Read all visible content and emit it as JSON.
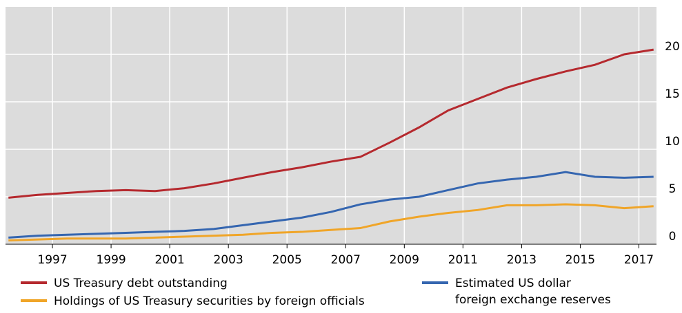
{
  "chart_data": {
    "type": "line",
    "x": [
      1995.5,
      1996.5,
      1997.5,
      1998.5,
      1999.5,
      2000.5,
      2001.5,
      2002.5,
      2003.5,
      2004.5,
      2005.5,
      2006.5,
      2007.5,
      2008.5,
      2009.5,
      2010.5,
      2011.5,
      2012.5,
      2013.5,
      2014.5,
      2015.5,
      2016.5,
      2017.5
    ],
    "series": [
      {
        "name": "US Treasury debt outstanding",
        "color": "#b5292e",
        "values": [
          4.9,
          5.2,
          5.4,
          5.6,
          5.7,
          5.6,
          5.9,
          6.4,
          7.0,
          7.6,
          8.1,
          8.7,
          9.2,
          10.7,
          12.3,
          14.1,
          15.3,
          16.5,
          17.4,
          18.2,
          18.9,
          20.0,
          20.5
        ]
      },
      {
        "name": "Holdings of US Treasury securities by foreign officials",
        "color": "#f0a528",
        "values": [
          0.4,
          0.5,
          0.6,
          0.6,
          0.6,
          0.7,
          0.8,
          0.9,
          1.0,
          1.2,
          1.3,
          1.5,
          1.7,
          2.4,
          2.9,
          3.3,
          3.6,
          4.1,
          4.1,
          4.2,
          4.1,
          3.8,
          4.0
        ]
      },
      {
        "name": "Estimated US dollar\nforeign exchange reserves",
        "color": "#3566b0",
        "values": [
          0.7,
          0.9,
          1.0,
          1.1,
          1.2,
          1.3,
          1.4,
          1.6,
          2.0,
          2.4,
          2.8,
          3.4,
          4.2,
          4.7,
          5.0,
          5.7,
          6.4,
          6.8,
          7.1,
          7.6,
          7.1,
          7.0,
          7.1
        ]
      }
    ],
    "xlim": [
      1995.4,
      2017.6
    ],
    "xticks": [
      1997,
      1999,
      2001,
      2003,
      2005,
      2007,
      2009,
      2011,
      2013,
      2015,
      2017
    ],
    "ylim": [
      0,
      25
    ],
    "yticks": [
      0,
      5,
      10,
      15,
      20
    ],
    "grid": true
  }
}
